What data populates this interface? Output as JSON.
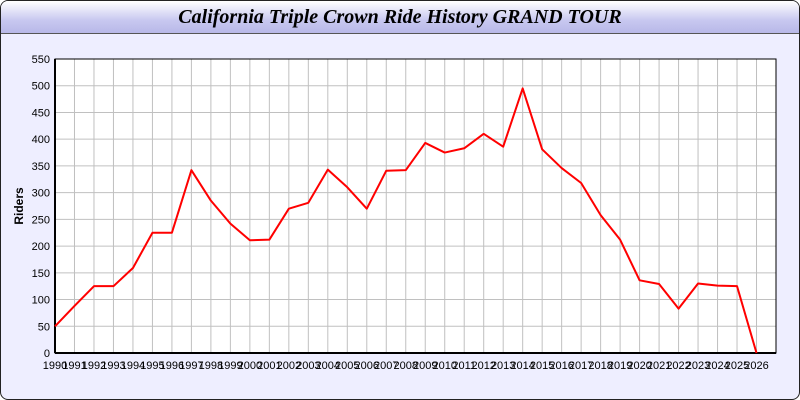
{
  "window": {
    "title": "California Triple Crown Ride History GRAND TOUR"
  },
  "chart_data": {
    "type": "line",
    "title": "California Triple Crown Ride History GRAND TOUR",
    "xlabel": "",
    "ylabel": "Riders",
    "x": [
      1990,
      1991,
      1992,
      1993,
      1994,
      1995,
      1996,
      1997,
      1998,
      1999,
      2000,
      2001,
      2002,
      2003,
      2004,
      2005,
      2006,
      2007,
      2008,
      2009,
      2010,
      2011,
      2012,
      2013,
      2014,
      2015,
      2016,
      2017,
      2018,
      2019,
      2020,
      2021,
      2022,
      2023,
      2024,
      2025,
      2026
    ],
    "series": [
      {
        "values": [
          50,
          88,
          125,
          125,
          159,
          225,
          225,
          342,
          285,
          242,
          211,
          212,
          270,
          281,
          343,
          310,
          270,
          341,
          342,
          393,
          375,
          383,
          410,
          386,
          495,
          381,
          346,
          318,
          258,
          212,
          136,
          129,
          83,
          130,
          126,
          125,
          0
        ],
        "color": "#ff0000"
      }
    ],
    "ylim": [
      0,
      550
    ],
    "xlim": [
      1990,
      2027
    ],
    "yticks": [
      0,
      50,
      100,
      150,
      200,
      250,
      300,
      350,
      400,
      450,
      500,
      550
    ],
    "grid": true,
    "colors": {
      "line": "#ff0000",
      "grid": "#c0c0c0",
      "background": "#eeeeff",
      "plot": "#ffffff"
    }
  }
}
